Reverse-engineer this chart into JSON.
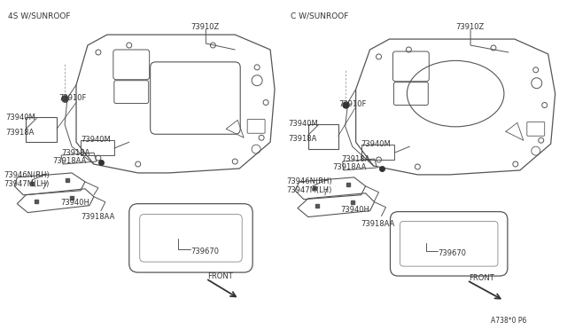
{
  "bg_color": "#ffffff",
  "line_color": "#555555",
  "text_color": "#333333",
  "left_label": "4S W/SUNROOF",
  "right_label": "C W/SUNROOF",
  "footer_label": "A738*0 P6",
  "font_size": 6.0,
  "title_font_size": 6.5
}
